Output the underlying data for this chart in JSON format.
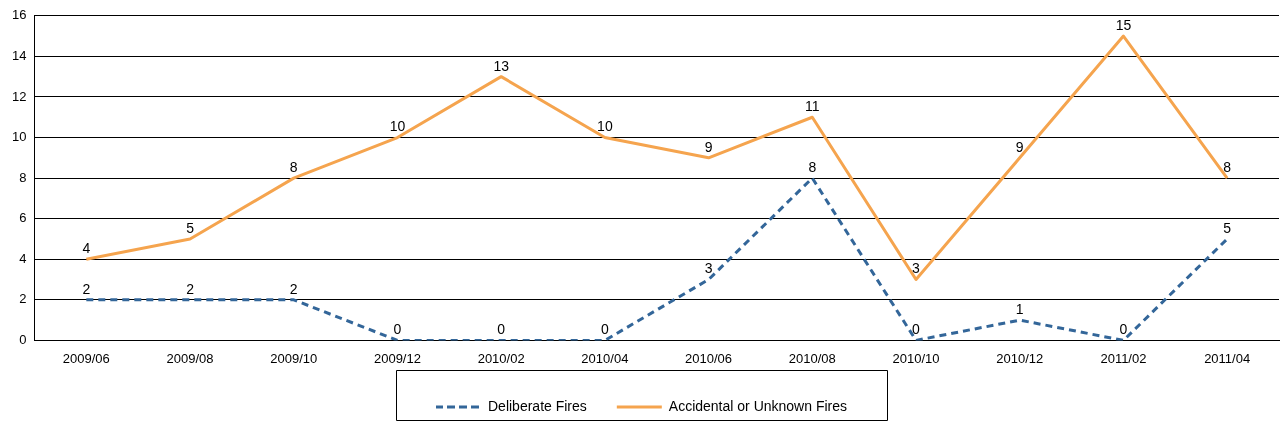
{
  "chart_data": {
    "type": "line",
    "categories": [
      "2009/06",
      "2009/08",
      "2009/10",
      "2009/12",
      "2010/02",
      "2010/04",
      "2010/06",
      "2010/08",
      "2010/10",
      "2010/12",
      "2011/02",
      "2011/04"
    ],
    "series": [
      {
        "name": "Deliberate Fires",
        "color": "#336699",
        "line_style": "dashed",
        "values": [
          2,
          2,
          2,
          0,
          0,
          0,
          3,
          8,
          0,
          1,
          0,
          5
        ]
      },
      {
        "name": "Accidental or Unknown Fires",
        "color": "#f5a44e",
        "line_style": "solid",
        "values": [
          4,
          5,
          8,
          10,
          13,
          10,
          9,
          11,
          3,
          9,
          15,
          8
        ]
      }
    ],
    "ylim": [
      0,
      16
    ],
    "yticks": [
      0,
      2,
      4,
      6,
      8,
      10,
      12,
      14,
      16
    ],
    "grid": "y",
    "legend": "bottom",
    "marker": "none",
    "data_labels": true
  }
}
